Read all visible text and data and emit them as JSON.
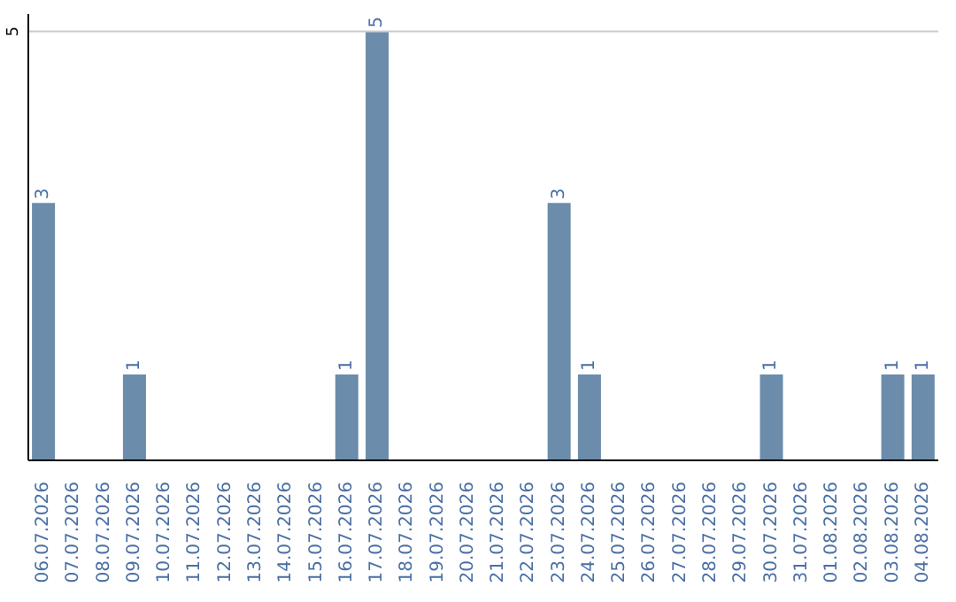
{
  "chart_data": {
    "type": "bar",
    "categories": [
      "06.07.2026",
      "07.07.2026",
      "08.07.2026",
      "09.07.2026",
      "10.07.2026",
      "11.07.2026",
      "12.07.2026",
      "13.07.2026",
      "14.07.2026",
      "15.07.2026",
      "16.07.2026",
      "17.07.2026",
      "18.07.2026",
      "19.07.2026",
      "20.07.2026",
      "21.07.2026",
      "22.07.2026",
      "23.07.2026",
      "24.07.2026",
      "25.07.2026",
      "26.07.2026",
      "27.07.2026",
      "28.07.2026",
      "29.07.2026",
      "30.07.2026",
      "31.07.2026",
      "01.08.2026",
      "02.08.2026",
      "03.08.2026",
      "04.08.2026"
    ],
    "values": [
      3,
      0,
      0,
      1,
      0,
      0,
      0,
      0,
      0,
      0,
      1,
      5,
      0,
      0,
      0,
      0,
      0,
      3,
      1,
      0,
      0,
      0,
      0,
      0,
      1,
      0,
      0,
      0,
      1,
      1
    ],
    "value_labels": [
      "3",
      null,
      null,
      "1",
      null,
      null,
      null,
      null,
      null,
      null,
      "1",
      "5",
      null,
      null,
      null,
      null,
      null,
      "3",
      "1",
      null,
      null,
      null,
      null,
      null,
      "1",
      null,
      null,
      null,
      "1",
      "1"
    ],
    "color": "#6b8cab",
    "ylim": [
      0,
      5.2
    ],
    "yticks": [
      {
        "value": 0,
        "label": null
      },
      5
    ],
    "grid": "y"
  }
}
